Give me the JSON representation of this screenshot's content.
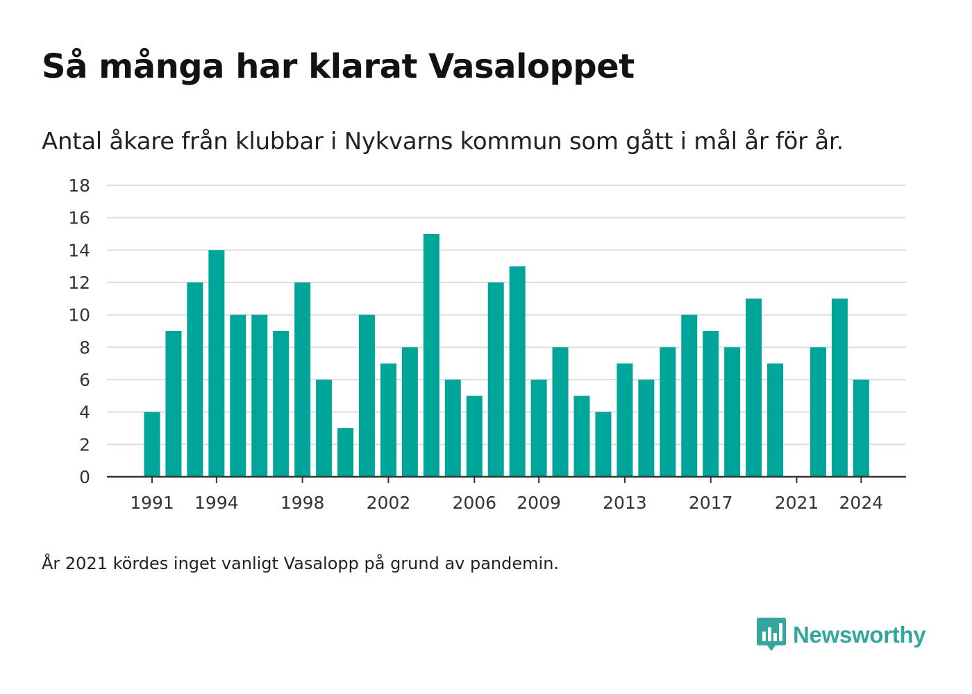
{
  "title": "Så många har klarat Vasaloppet",
  "subtitle": "Antal åkare från klubbar i Nykvarns kommun som gått i mål år för år.",
  "footnote": "År 2021 kördes inget vanligt Vasalopp på grund av pandemin.",
  "logo": {
    "text": "Newsworthy",
    "icon": "newsworthy-chart-bubble-icon",
    "color": "#33a79e"
  },
  "colors": {
    "bar": "#00a59a",
    "grid": "#dddddd",
    "axis": "#333333"
  },
  "chart_data": {
    "type": "bar",
    "title": "Så många har klarat Vasaloppet",
    "subtitle": "Antal åkare från klubbar i Nykvarns kommun som gått i mål år för år.",
    "xlabel": "",
    "ylabel": "",
    "ylim": [
      0,
      18
    ],
    "yticks": [
      0,
      2,
      4,
      6,
      8,
      10,
      12,
      14,
      16,
      18
    ],
    "xtick_labels": [
      "1991",
      "1994",
      "1998",
      "2002",
      "2006",
      "2009",
      "2013",
      "2017",
      "2021",
      "2024"
    ],
    "grid": true,
    "legend": "none",
    "categories": [
      "1991",
      "1992",
      "1993",
      "1994",
      "1995",
      "1996",
      "1997",
      "1998",
      "1999",
      "2000",
      "2001",
      "2002",
      "2003",
      "2004",
      "2005",
      "2006",
      "2007",
      "2008",
      "2009",
      "2010",
      "2011",
      "2012",
      "2013",
      "2014",
      "2015",
      "2016",
      "2017",
      "2018",
      "2019",
      "2020",
      "2021",
      "2022",
      "2023",
      "2024"
    ],
    "values": [
      4,
      9,
      12,
      14,
      10,
      10,
      9,
      12,
      6,
      3,
      10,
      7,
      8,
      15,
      6,
      5,
      12,
      13,
      6,
      8,
      5,
      4,
      7,
      6,
      8,
      10,
      9,
      8,
      11,
      7,
      0,
      8,
      11,
      6
    ]
  }
}
